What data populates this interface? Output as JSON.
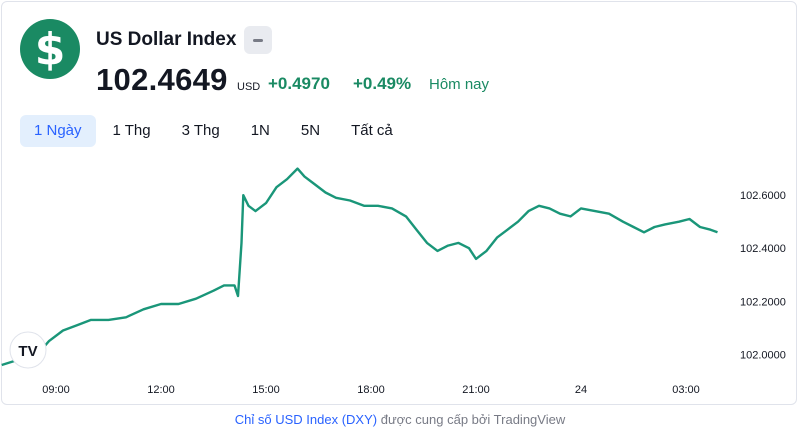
{
  "header": {
    "logo_symbol": "$",
    "logo_icon": "dollar-circle-icon",
    "title": "US Dollar Index",
    "more_icon": "more-icon"
  },
  "quote": {
    "price": "102.4649",
    "currency": "USD",
    "change": "+0.4970",
    "change_percent": "+0.49%",
    "period_label": "Hôm nay"
  },
  "tabs": [
    {
      "label": "1 Ngày",
      "active": true
    },
    {
      "label": "1 Thg",
      "active": false
    },
    {
      "label": "3 Thg",
      "active": false
    },
    {
      "label": "1N",
      "active": false
    },
    {
      "label": "5N",
      "active": false
    },
    {
      "label": "Tất cả",
      "active": false
    }
  ],
  "colors": {
    "accent": "#1a8a63",
    "line": "#1a9679",
    "link": "#2962ff",
    "muted": "#787b86",
    "active_tab_bg": "#e3effd"
  },
  "chart_data": {
    "type": "line",
    "x_ticks": [
      "09:00",
      "12:00",
      "15:00",
      "18:00",
      "21:00",
      "24",
      "03:00"
    ],
    "x_tick_positions": [
      9,
      12,
      15,
      18,
      21,
      24,
      27
    ],
    "y_ticks": [
      "102.6000",
      "102.4000",
      "102.2000",
      "102.0000"
    ],
    "y_tick_values": [
      102.6,
      102.4,
      102.2,
      102.0
    ],
    "xlim": [
      7.4,
      28.2
    ],
    "ylim": [
      101.93,
      102.74
    ],
    "grid": false,
    "series": [
      {
        "x": [
          7.45,
          7.8,
          8.1,
          8.4,
          8.8,
          9.2,
          9.6,
          10.0,
          10.5,
          11.0,
          11.5,
          12.0,
          12.5,
          13.0,
          13.5,
          13.8,
          14.1,
          14.2,
          14.3,
          14.35,
          14.5,
          14.7,
          15.0,
          15.3,
          15.6,
          15.9,
          16.1,
          16.4,
          16.7,
          17.0,
          17.4,
          17.8,
          18.2,
          18.6,
          19.0,
          19.3,
          19.6,
          19.9,
          20.2,
          20.5,
          20.8,
          21.0,
          21.3,
          21.6,
          21.9,
          22.2,
          22.5,
          22.8,
          23.1,
          23.4,
          23.7,
          24.0,
          24.4,
          24.8,
          25.2,
          25.5,
          25.8,
          26.1,
          26.4,
          26.8,
          27.1,
          27.4,
          27.7,
          27.9
        ],
        "y": [
          101.96,
          101.975,
          101.97,
          101.99,
          102.05,
          102.09,
          102.11,
          102.13,
          102.13,
          102.14,
          102.17,
          102.19,
          102.19,
          102.21,
          102.24,
          102.26,
          102.26,
          102.22,
          102.42,
          102.6,
          102.56,
          102.54,
          102.57,
          102.63,
          102.66,
          102.7,
          102.67,
          102.64,
          102.61,
          102.59,
          102.58,
          102.56,
          102.56,
          102.55,
          102.52,
          102.47,
          102.42,
          102.39,
          102.41,
          102.42,
          102.4,
          102.36,
          102.39,
          102.44,
          102.47,
          102.5,
          102.54,
          102.56,
          102.55,
          102.53,
          102.52,
          102.55,
          102.54,
          102.53,
          102.5,
          102.48,
          102.46,
          102.48,
          102.49,
          102.5,
          102.51,
          102.48,
          102.47,
          102.46
        ]
      }
    ]
  },
  "footer": {
    "link_text": "Chỉ số USD Index (DXY)",
    "text": "được cung cấp bởi TradingView"
  },
  "watermark_text": "TV"
}
